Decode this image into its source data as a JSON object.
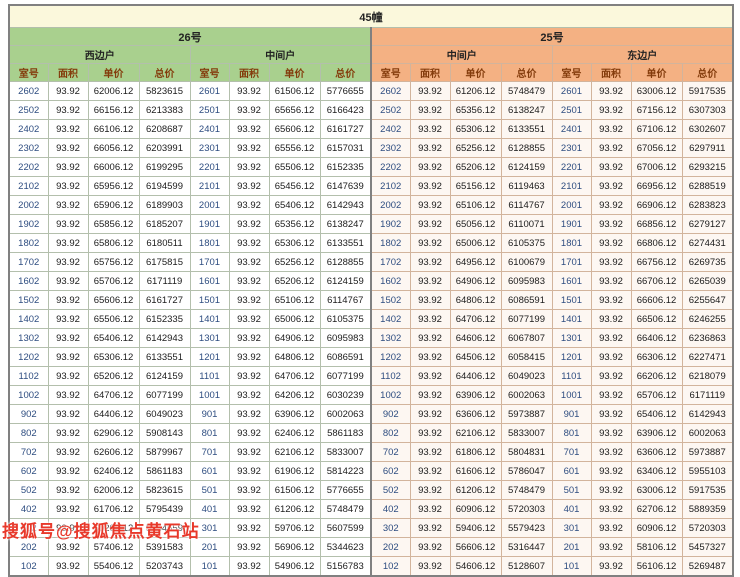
{
  "title": "45幢",
  "watermark": "搜狐号@搜狐焦点黄石站",
  "sections": [
    {
      "name": "26号",
      "units": [
        "西边户",
        "中间户"
      ]
    },
    {
      "name": "25号",
      "units": [
        "中间户",
        "东边户"
      ]
    }
  ],
  "column_headers": [
    "室号",
    "面积",
    "单价",
    "总价"
  ],
  "colors": {
    "title_bg": "#fbf8dc",
    "green": "#a9d08e",
    "peach": "#f4b183",
    "header_text": "#843c0c",
    "room_text": "#2e4d80",
    "grid_green": "#b3bfac",
    "grid_peach": "#d2b49c",
    "border_dark": "#808080",
    "left_bg": "#ffffff",
    "right_bg": "#fdf7f2",
    "watermark_red": "#e8392b"
  },
  "rows": [
    [
      "2602",
      "93.92",
      "62006.12",
      "5823615",
      "2601",
      "93.92",
      "61506.12",
      "5776655",
      "2602",
      "93.92",
      "61206.12",
      "5748479",
      "2601",
      "93.92",
      "63006.12",
      "5917535"
    ],
    [
      "2502",
      "93.92",
      "66156.12",
      "6213383",
      "2501",
      "93.92",
      "65656.12",
      "6166423",
      "2502",
      "93.92",
      "65356.12",
      "6138247",
      "2501",
      "93.92",
      "67156.12",
      "6307303"
    ],
    [
      "2402",
      "93.92",
      "66106.12",
      "6208687",
      "2401",
      "93.92",
      "65606.12",
      "6161727",
      "2402",
      "93.92",
      "65306.12",
      "6133551",
      "2401",
      "93.92",
      "67106.12",
      "6302607"
    ],
    [
      "2302",
      "93.92",
      "66056.12",
      "6203991",
      "2301",
      "93.92",
      "65556.12",
      "6157031",
      "2302",
      "93.92",
      "65256.12",
      "6128855",
      "2301",
      "93.92",
      "67056.12",
      "6297911"
    ],
    [
      "2202",
      "93.92",
      "66006.12",
      "6199295",
      "2201",
      "93.92",
      "65506.12",
      "6152335",
      "2202",
      "93.92",
      "65206.12",
      "6124159",
      "2201",
      "93.92",
      "67006.12",
      "6293215"
    ],
    [
      "2102",
      "93.92",
      "65956.12",
      "6194599",
      "2101",
      "93.92",
      "65456.12",
      "6147639",
      "2102",
      "93.92",
      "65156.12",
      "6119463",
      "2101",
      "93.92",
      "66956.12",
      "6288519"
    ],
    [
      "2002",
      "93.92",
      "65906.12",
      "6189903",
      "2001",
      "93.92",
      "65406.12",
      "6142943",
      "2002",
      "93.92",
      "65106.12",
      "6114767",
      "2001",
      "93.92",
      "66906.12",
      "6283823"
    ],
    [
      "1902",
      "93.92",
      "65856.12",
      "6185207",
      "1901",
      "93.92",
      "65356.12",
      "6138247",
      "1902",
      "93.92",
      "65056.12",
      "6110071",
      "1901",
      "93.92",
      "66856.12",
      "6279127"
    ],
    [
      "1802",
      "93.92",
      "65806.12",
      "6180511",
      "1801",
      "93.92",
      "65306.12",
      "6133551",
      "1802",
      "93.92",
      "65006.12",
      "6105375",
      "1801",
      "93.92",
      "66806.12",
      "6274431"
    ],
    [
      "1702",
      "93.92",
      "65756.12",
      "6175815",
      "1701",
      "93.92",
      "65256.12",
      "6128855",
      "1702",
      "93.92",
      "64956.12",
      "6100679",
      "1701",
      "93.92",
      "66756.12",
      "6269735"
    ],
    [
      "1602",
      "93.92",
      "65706.12",
      "6171119",
      "1601",
      "93.92",
      "65206.12",
      "6124159",
      "1602",
      "93.92",
      "64906.12",
      "6095983",
      "1601",
      "93.92",
      "66706.12",
      "6265039"
    ],
    [
      "1502",
      "93.92",
      "65606.12",
      "6161727",
      "1501",
      "93.92",
      "65106.12",
      "6114767",
      "1502",
      "93.92",
      "64806.12",
      "6086591",
      "1501",
      "93.92",
      "66606.12",
      "6255647"
    ],
    [
      "1402",
      "93.92",
      "65506.12",
      "6152335",
      "1401",
      "93.92",
      "65006.12",
      "6105375",
      "1402",
      "93.92",
      "64706.12",
      "6077199",
      "1401",
      "93.92",
      "66506.12",
      "6246255"
    ],
    [
      "1302",
      "93.92",
      "65406.12",
      "6142943",
      "1301",
      "93.92",
      "64906.12",
      "6095983",
      "1302",
      "93.92",
      "64606.12",
      "6067807",
      "1301",
      "93.92",
      "66406.12",
      "6236863"
    ],
    [
      "1202",
      "93.92",
      "65306.12",
      "6133551",
      "1201",
      "93.92",
      "64806.12",
      "6086591",
      "1202",
      "93.92",
      "64506.12",
      "6058415",
      "1201",
      "93.92",
      "66306.12",
      "6227471"
    ],
    [
      "1102",
      "93.92",
      "65206.12",
      "6124159",
      "1101",
      "93.92",
      "64706.12",
      "6077199",
      "1102",
      "93.92",
      "64406.12",
      "6049023",
      "1101",
      "93.92",
      "66206.12",
      "6218079"
    ],
    [
      "1002",
      "93.92",
      "64706.12",
      "6077199",
      "1001",
      "93.92",
      "64206.12",
      "6030239",
      "1002",
      "93.92",
      "63906.12",
      "6002063",
      "1001",
      "93.92",
      "65706.12",
      "6171119"
    ],
    [
      "902",
      "93.92",
      "64406.12",
      "6049023",
      "901",
      "93.92",
      "63906.12",
      "6002063",
      "902",
      "93.92",
      "63606.12",
      "5973887",
      "901",
      "93.92",
      "65406.12",
      "6142943"
    ],
    [
      "802",
      "93.92",
      "62906.12",
      "5908143",
      "801",
      "93.92",
      "62406.12",
      "5861183",
      "802",
      "93.92",
      "62106.12",
      "5833007",
      "801",
      "93.92",
      "63906.12",
      "6002063"
    ],
    [
      "702",
      "93.92",
      "62606.12",
      "5879967",
      "701",
      "93.92",
      "62106.12",
      "5833007",
      "702",
      "93.92",
      "61806.12",
      "5804831",
      "701",
      "93.92",
      "63606.12",
      "5973887"
    ],
    [
      "602",
      "93.92",
      "62406.12",
      "5861183",
      "601",
      "93.92",
      "61906.12",
      "5814223",
      "602",
      "93.92",
      "61606.12",
      "5786047",
      "601",
      "93.92",
      "63406.12",
      "5955103"
    ],
    [
      "502",
      "93.92",
      "62006.12",
      "5823615",
      "501",
      "93.92",
      "61506.12",
      "5776655",
      "502",
      "93.92",
      "61206.12",
      "5748479",
      "501",
      "93.92",
      "63006.12",
      "5917535"
    ],
    [
      "402",
      "93.92",
      "61706.12",
      "5795439",
      "401",
      "93.92",
      "61206.12",
      "5748479",
      "402",
      "93.92",
      "60906.12",
      "5720303",
      "401",
      "93.92",
      "62706.12",
      "5889359"
    ],
    [
      "302",
      "93.92",
      "60206.12",
      "5654559",
      "301",
      "93.92",
      "59706.12",
      "5607599",
      "302",
      "93.92",
      "59406.12",
      "5579423",
      "301",
      "93.92",
      "60906.12",
      "5720303"
    ],
    [
      "202",
      "93.92",
      "57406.12",
      "5391583",
      "201",
      "93.92",
      "56906.12",
      "5344623",
      "202",
      "93.92",
      "56606.12",
      "5316447",
      "201",
      "93.92",
      "58106.12",
      "5457327"
    ],
    [
      "102",
      "93.92",
      "55406.12",
      "5203743",
      "101",
      "93.92",
      "54906.12",
      "5156783",
      "102",
      "93.92",
      "54606.12",
      "5128607",
      "101",
      "93.92",
      "56106.12",
      "5269487"
    ]
  ]
}
